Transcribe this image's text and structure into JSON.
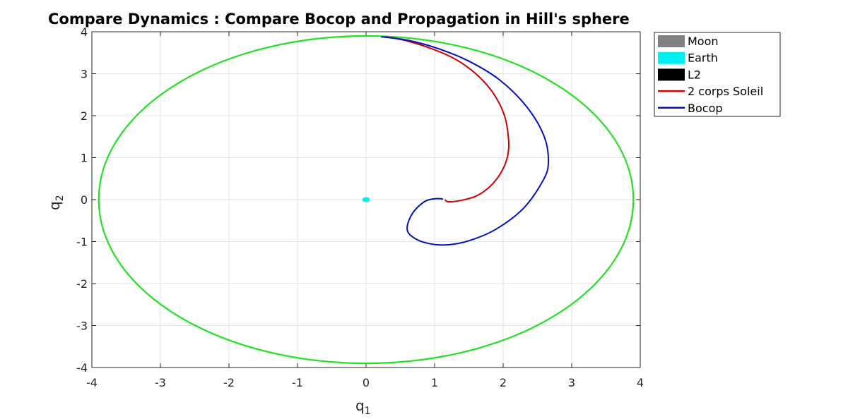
{
  "chart_data": {
    "type": "line",
    "title": "Compare Dynamics : Compare Bocop and Propagation in Hill's sphere",
    "xlabel": "q",
    "xlabel_sub": "1",
    "ylabel": "q",
    "ylabel_sub": "2",
    "xlim": [
      -4,
      4
    ],
    "ylim": [
      -4,
      4
    ],
    "xticks": [
      -4,
      -3,
      -2,
      -1,
      0,
      1,
      2,
      3,
      4
    ],
    "yticks": [
      -4,
      -3,
      -2,
      -1,
      0,
      1,
      2,
      3,
      4
    ],
    "grid": true,
    "legend_position": "outside-top-right",
    "hill_sphere": {
      "radius_x": 3.9,
      "radius_y": 3.9,
      "color": "#22e022"
    },
    "legend": [
      {
        "label": "Moon",
        "kind": "patch",
        "color": "#808080"
      },
      {
        "label": "Earth",
        "kind": "patch",
        "color": "#00f0f0"
      },
      {
        "label": "L2",
        "kind": "patch",
        "color": "#000000"
      },
      {
        "label": "2 corps Soleil",
        "kind": "line",
        "color": "#d00000"
      },
      {
        "label": "Bocop",
        "kind": "line",
        "color": "#0010c0"
      }
    ],
    "earth": {
      "x": 0.0,
      "y": 0.0,
      "color": "#00f0f0"
    },
    "series": [
      {
        "name": "2 corps Soleil",
        "color": "#d00000",
        "x": [
          0.28,
          0.6,
          0.95,
          1.3,
          1.6,
          1.85,
          2.02,
          2.08,
          2.06,
          1.96,
          1.8,
          1.6,
          1.38,
          1.2,
          1.15
        ],
        "y": [
          3.88,
          3.78,
          3.6,
          3.35,
          3.0,
          2.55,
          2.0,
          1.4,
          1.0,
          0.62,
          0.3,
          0.08,
          -0.02,
          -0.05,
          0.0
        ]
      },
      {
        "name": "Bocop",
        "color": "#0010c0",
        "x": [
          0.22,
          0.6,
          1.05,
          1.5,
          1.95,
          2.35,
          2.6,
          2.66,
          2.58,
          2.3,
          1.9,
          1.5,
          1.15,
          0.85,
          0.65,
          0.6,
          0.68,
          0.85,
          1.0,
          1.1,
          1.12
        ],
        "y": [
          3.88,
          3.8,
          3.6,
          3.3,
          2.85,
          2.2,
          1.5,
          0.88,
          0.45,
          -0.2,
          -0.7,
          -0.98,
          -1.08,
          -1.02,
          -0.85,
          -0.65,
          -0.32,
          -0.05,
          0.02,
          0.02,
          0.0
        ]
      }
    ]
  }
}
